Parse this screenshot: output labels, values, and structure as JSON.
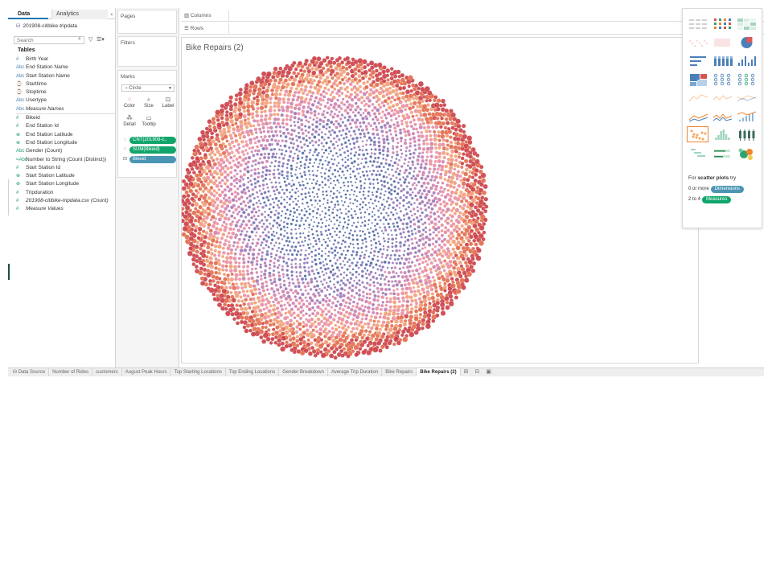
{
  "data_pane": {
    "tab_data": "Data",
    "tab_analytics": "Analytics",
    "collapse_glyph": "‹",
    "data_source": "201908-citibike-tripdata",
    "search_placeholder": "Search",
    "tables_label": "Tables",
    "fields_top": [
      {
        "icon": "#",
        "label": "Birth Year",
        "type": "dim"
      },
      {
        "icon": "Abc",
        "label": "End Station Name",
        "type": "dim"
      },
      {
        "icon": "Abc",
        "label": "Start Station Name",
        "type": "dim"
      },
      {
        "icon": "⌚",
        "label": "Starttime",
        "type": "dim"
      },
      {
        "icon": "⌚",
        "label": "Stoptime",
        "type": "dim"
      },
      {
        "icon": "Abc",
        "label": "Usertype",
        "type": "dim"
      },
      {
        "icon": "Abc",
        "label": "Measure Names",
        "type": "dim",
        "italic": true
      }
    ],
    "fields_bottom": [
      {
        "icon": "#",
        "label": "Bikeid",
        "type": "meas"
      },
      {
        "icon": "#",
        "label": "End Station Id",
        "type": "meas"
      },
      {
        "icon": "⊕",
        "label": "End Station Latitude",
        "type": "meas"
      },
      {
        "icon": "⊕",
        "label": "End Station Longitude",
        "type": "meas"
      },
      {
        "icon": "Abc",
        "label": "Gender (Count)",
        "type": "meas"
      },
      {
        "icon": "=Abc",
        "label": "Number to String (Count (Distinct))",
        "type": "meas"
      },
      {
        "icon": "#",
        "label": "Start Station Id",
        "type": "meas"
      },
      {
        "icon": "⊕",
        "label": "Start Station Latitude",
        "type": "meas"
      },
      {
        "icon": "⊕",
        "label": "Start Station Longitude",
        "type": "meas"
      },
      {
        "icon": "#",
        "label": "Tripduration",
        "type": "meas"
      },
      {
        "icon": "#",
        "label": "201908-citibike-tripdata.csv (Count)",
        "type": "meas",
        "italic": true
      },
      {
        "icon": "#",
        "label": "Measure Values",
        "type": "meas",
        "italic": true
      }
    ]
  },
  "shelves": {
    "pages": "Pages",
    "filters": "Filters",
    "marks": "Marks",
    "mark_type": "Circle",
    "color": "Color",
    "size": "Size",
    "label": "Label",
    "detail": "Detail",
    "tooltip": "Tooltip",
    "pills": [
      {
        "icon": "tooltip-icon",
        "text": "CNT(201908-c..",
        "color": "green"
      },
      {
        "icon": "color-icon",
        "text": "SUM(Bikeid)",
        "color": "green"
      },
      {
        "icon": "detail-icon",
        "text": "Bikeid",
        "color": "blue"
      }
    ],
    "columns": "Columns",
    "rows": "Rows"
  },
  "view": {
    "title": "Bike Repairs (2)",
    "colors": [
      "#3f5a9a",
      "#6a68ad",
      "#9a6fb0",
      "#c978a8",
      "#e8869a",
      "#f0966f",
      "#e0603f",
      "#c8323a"
    ]
  },
  "show_me": {
    "hint_prefix": "For ",
    "hint_bold": "scatter plots",
    "hint_suffix": " try",
    "req_dim_prefix": "0 or more",
    "req_dim_pill": "Dimensions",
    "req_meas_prefix": "2 to 4",
    "req_meas_pill": "Measures",
    "active_cell": 18
  },
  "sheet_tabs": {
    "data_source": "Data Source",
    "tabs": [
      "Number of Rides",
      "customers",
      "August Peak Hours",
      "Top Starting Locations",
      "Top Ending Locations",
      "Gender Breakdown",
      "Average Trip Duration",
      "Bike Repairs",
      "Bike Repairs (2)"
    ],
    "active": "Bike Repairs (2)"
  }
}
